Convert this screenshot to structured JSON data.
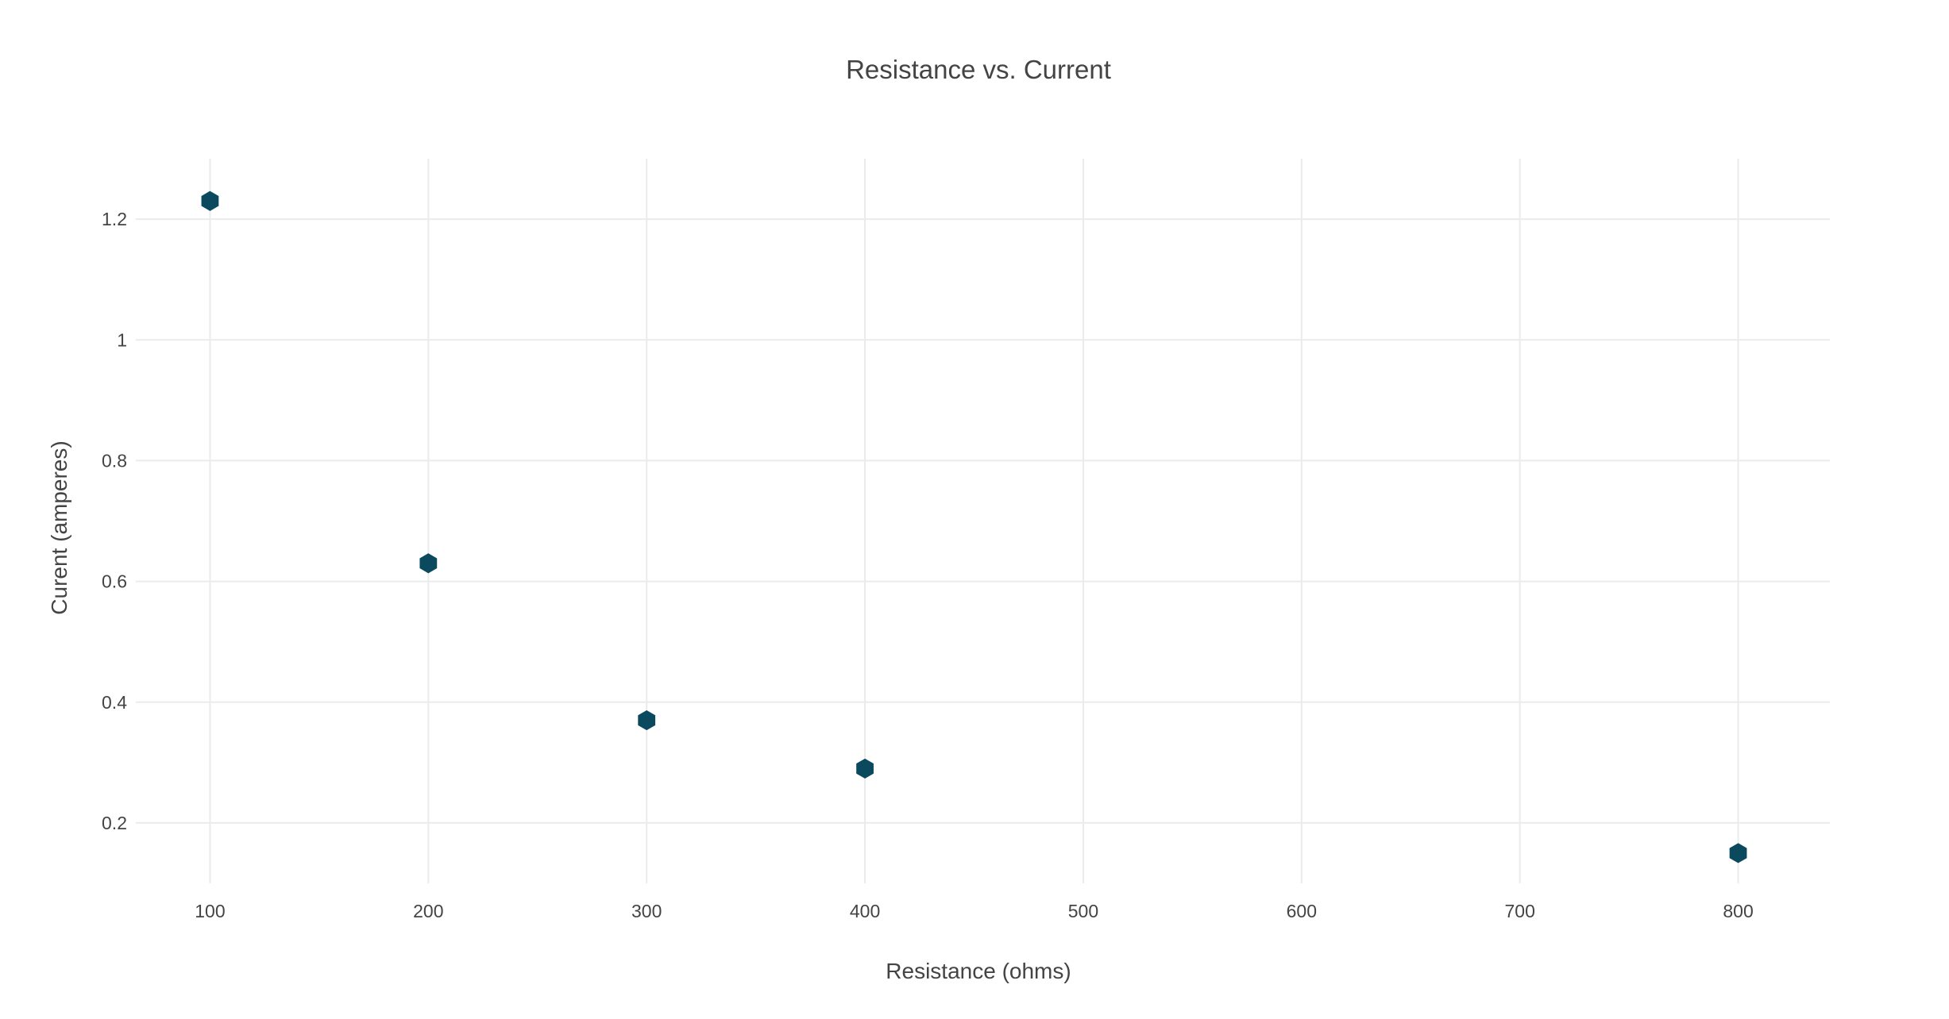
{
  "chart_data": {
    "type": "scatter",
    "title": "Resistance vs. Current",
    "xlabel": "Resistance (ohms)",
    "ylabel": "Curent (amperes)",
    "x": [
      100,
      200,
      300,
      400,
      800
    ],
    "y": [
      1.23,
      0.63,
      0.37,
      0.29,
      0.15
    ],
    "xlim": [
      66,
      842
    ],
    "ylim": [
      0.1,
      1.3
    ],
    "x_ticks": [
      100,
      200,
      300,
      400,
      500,
      600,
      700,
      800
    ],
    "x_tick_labels": [
      "100",
      "200",
      "300",
      "400",
      "500",
      "600",
      "700",
      "800"
    ],
    "y_ticks": [
      0.2,
      0.4,
      0.6,
      0.8,
      1.0,
      1.2
    ],
    "y_tick_labels": [
      "0.2",
      "0.4",
      "0.6",
      "0.8",
      "1",
      "1.2"
    ],
    "grid": true,
    "legend": false,
    "marker": "hexagon",
    "marker_color": "#0b4a5e"
  }
}
